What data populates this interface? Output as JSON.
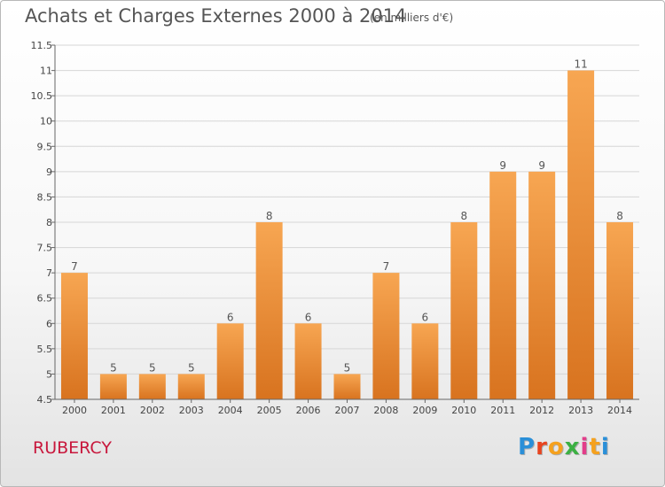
{
  "title": "Achats et Charges Externes 2000 à 2014",
  "subtitle": "(en milliers d'€)",
  "commune": "RUBERCY",
  "logo": {
    "text": "Proxiti",
    "letter_colors": [
      "#2a8fd8",
      "#e8441f",
      "#f5a11e",
      "#3cb043",
      "#e23d8a",
      "#f5a11e",
      "#2a8fd8"
    ]
  },
  "colors": {
    "bar_light": "#f7a652",
    "bar_dark": "#d8731f",
    "commune": "#c8173c",
    "grid": "#d6d6d6",
    "axis": "#666666"
  },
  "chart_data": {
    "type": "bar",
    "title": "Achats et Charges Externes 2000 à 2014",
    "subtitle": "(en milliers d'€)",
    "categories": [
      "2000",
      "2001",
      "2002",
      "2003",
      "2004",
      "2005",
      "2006",
      "2007",
      "2008",
      "2009",
      "2010",
      "2011",
      "2012",
      "2013",
      "2014"
    ],
    "values": [
      7,
      5,
      5,
      5,
      6,
      8,
      6,
      5,
      7,
      6,
      8,
      9,
      9,
      11,
      8
    ],
    "value_labels": [
      "7",
      "5",
      "5",
      "5",
      "6",
      "8",
      "6",
      "5",
      "7",
      "6",
      "8",
      "9",
      "9",
      "11",
      "8"
    ],
    "ylim": [
      4.5,
      11.5
    ],
    "yticks": [
      "4.5",
      "5",
      "5.5",
      "6",
      "6.5",
      "7",
      "7.5",
      "8",
      "8.5",
      "9",
      "9.5",
      "10",
      "10.5",
      "11",
      "11.5"
    ],
    "grid": true,
    "legend": "none"
  }
}
